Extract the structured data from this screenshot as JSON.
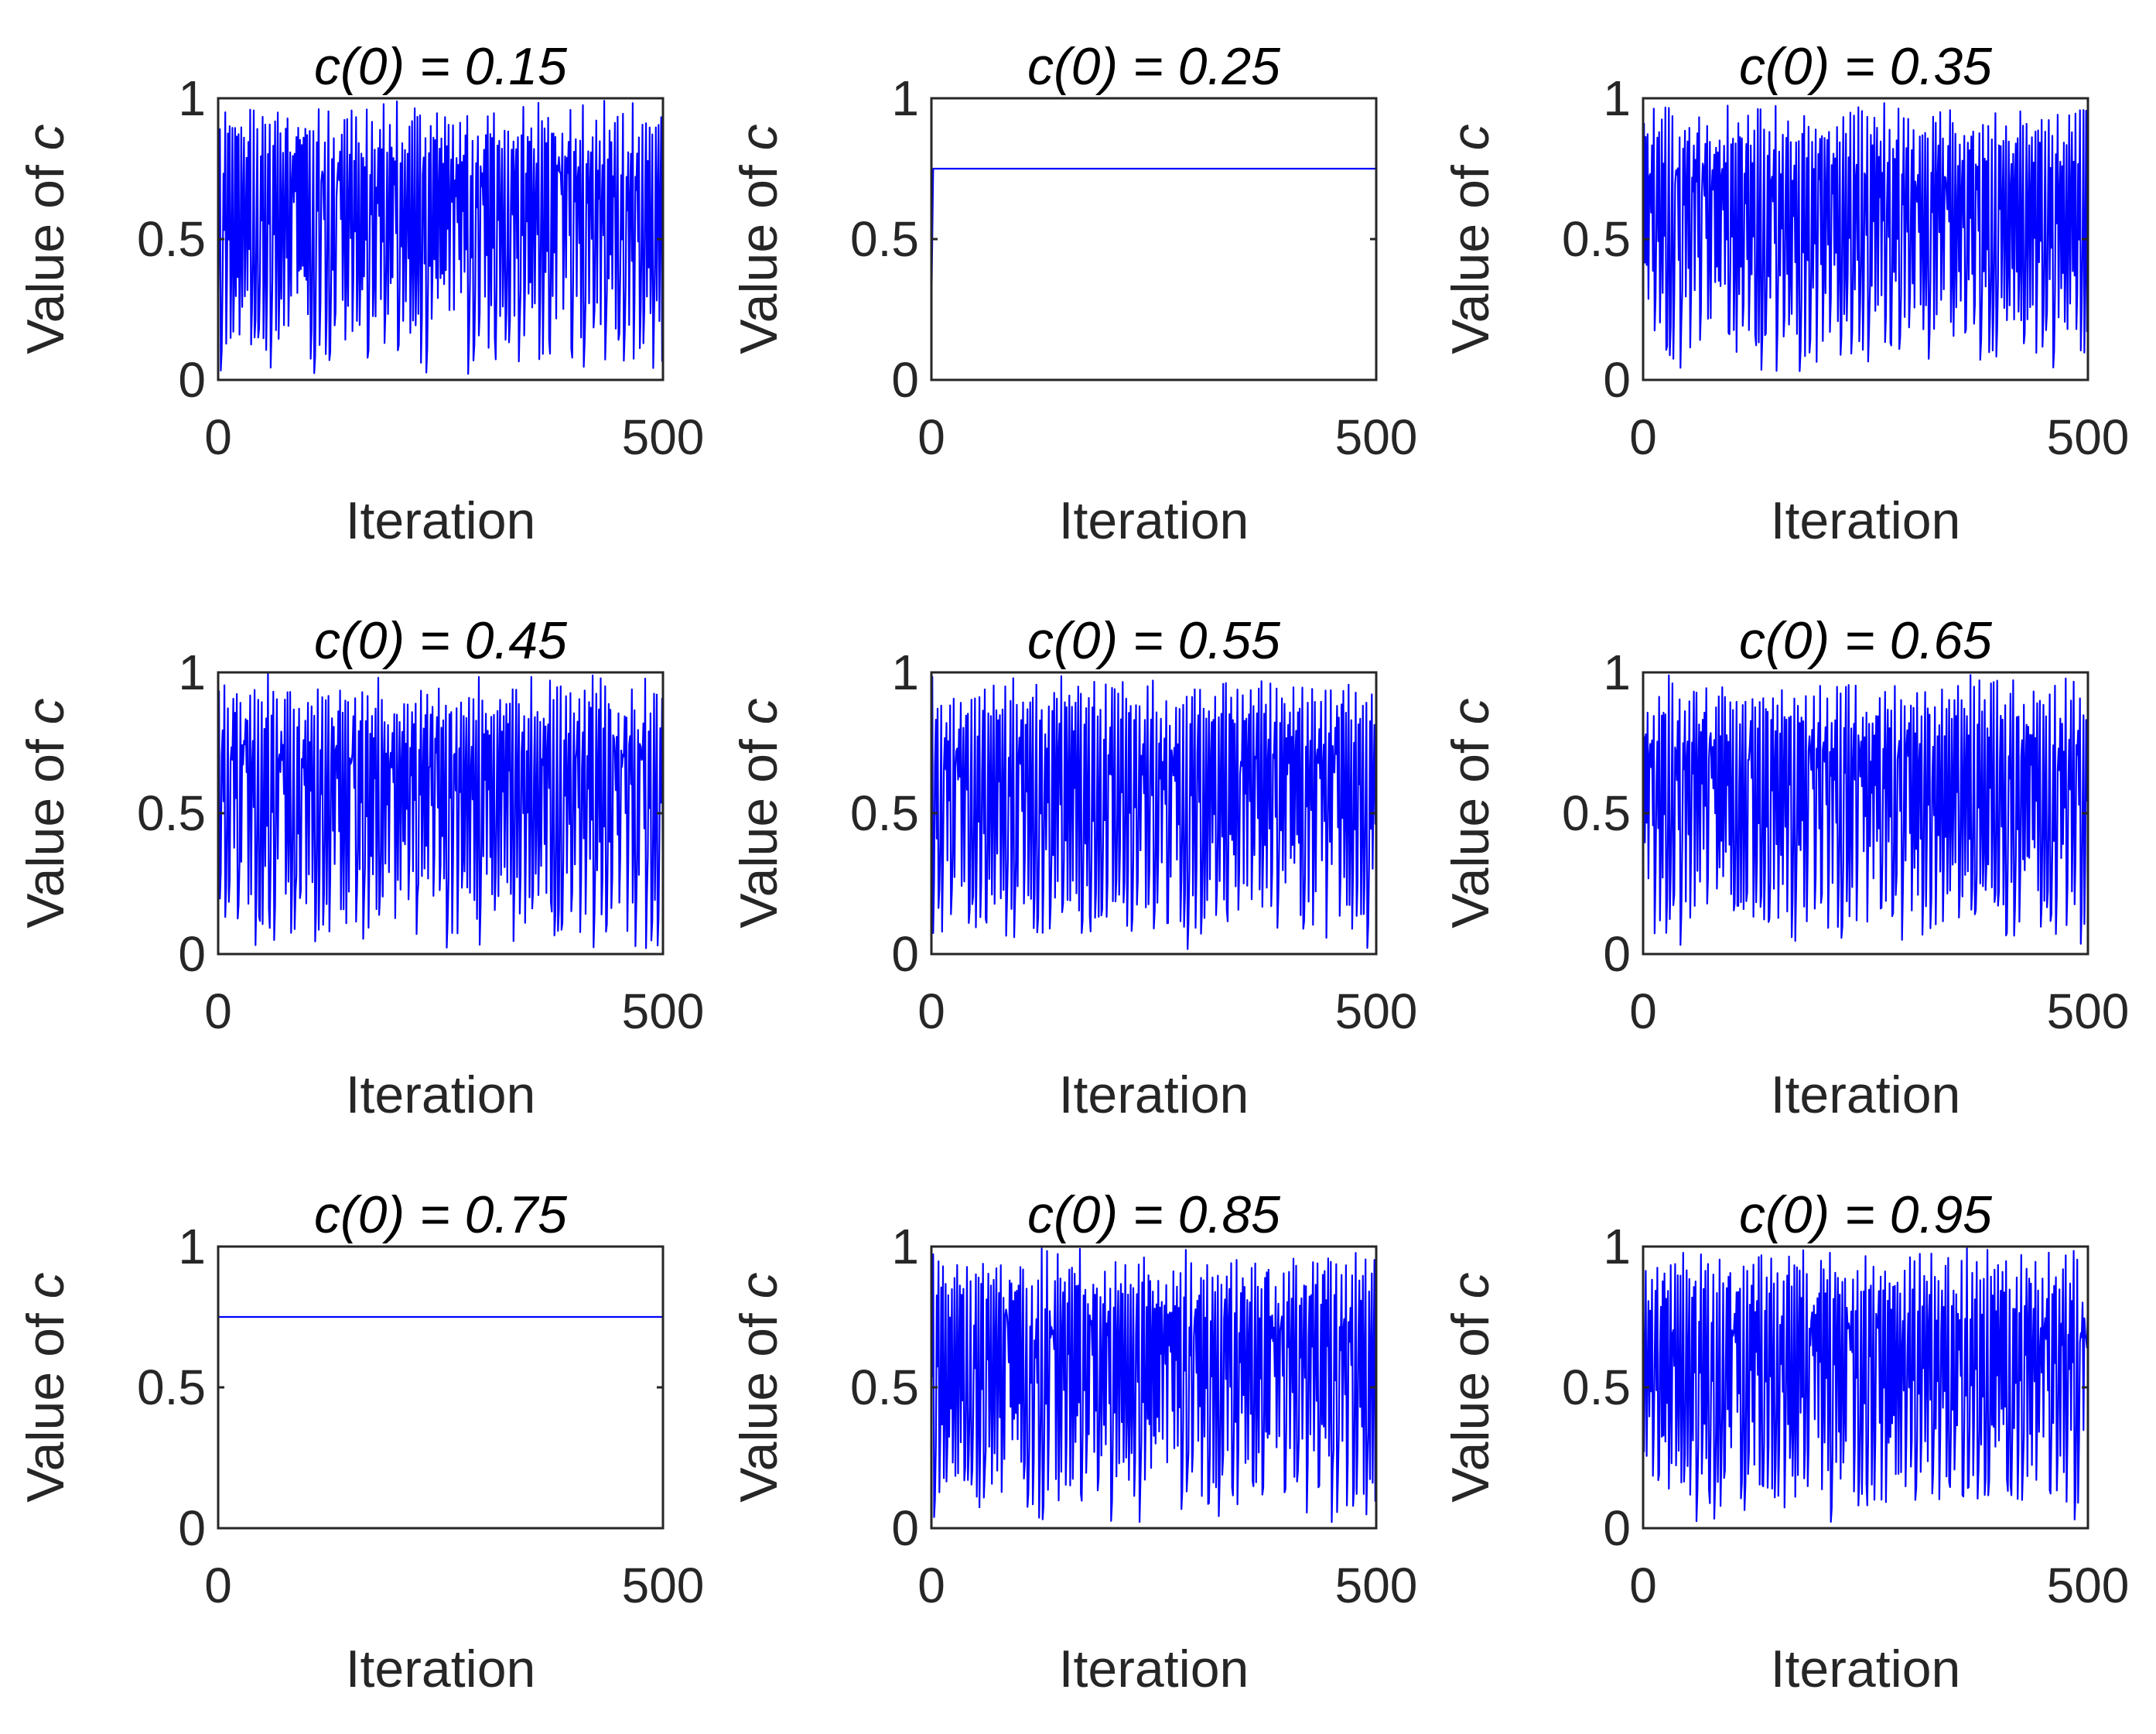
{
  "colors": {
    "series": "#0000ff",
    "axis": "#262626",
    "background": "#ffffff"
  },
  "chart_data": [
    {
      "type": "line",
      "title": "c(0) = 0.15",
      "title_prefix": "c(0) = ",
      "title_value": "0.15",
      "c0": 0.15,
      "behavior": "chaotic",
      "seed": 11,
      "xlabel": "Iteration",
      "ylabel": "Value of c",
      "ylabel_prefix": "Value of ",
      "ylabel_var": "c",
      "xlim": [
        0,
        500
      ],
      "ylim": [
        0,
        1
      ],
      "xticks": [
        "0",
        "500"
      ],
      "yticks": [
        "0",
        "0.5",
        "1"
      ],
      "steady_value": null
    },
    {
      "type": "line",
      "title": "c(0) = 0.25",
      "title_prefix": "c(0) = ",
      "title_value": "0.25",
      "c0": 0.25,
      "behavior": "converges",
      "seed": 0,
      "xlabel": "Iteration",
      "ylabel": "Value of c",
      "ylabel_prefix": "Value of ",
      "ylabel_var": "c",
      "xlim": [
        0,
        500
      ],
      "ylim": [
        0,
        1
      ],
      "xticks": [
        "0",
        "500"
      ],
      "yticks": [
        "0",
        "0.5",
        "1"
      ],
      "steady_value": 0.75
    },
    {
      "type": "line",
      "title": "c(0) = 0.35",
      "title_prefix": "c(0) = ",
      "title_value": "0.35",
      "c0": 0.35,
      "behavior": "chaotic",
      "seed": 23,
      "xlabel": "Iteration",
      "ylabel": "Value of c",
      "ylabel_prefix": "Value of ",
      "ylabel_var": "c",
      "xlim": [
        0,
        500
      ],
      "ylim": [
        0,
        1
      ],
      "xticks": [
        "0",
        "500"
      ],
      "yticks": [
        "0",
        "0.5",
        "1"
      ],
      "steady_value": null
    },
    {
      "type": "line",
      "title": "c(0) = 0.45",
      "title_prefix": "c(0) = ",
      "title_value": "0.45",
      "c0": 0.45,
      "behavior": "chaotic",
      "seed": 37,
      "xlabel": "Iteration",
      "ylabel": "Value of c",
      "ylabel_prefix": "Value of ",
      "ylabel_var": "c",
      "xlim": [
        0,
        500
      ],
      "ylim": [
        0,
        1
      ],
      "xticks": [
        "0",
        "500"
      ],
      "yticks": [
        "0",
        "0.5",
        "1"
      ],
      "steady_value": null
    },
    {
      "type": "line",
      "title": "c(0) = 0.55",
      "title_prefix": "c(0) = ",
      "title_value": "0.55",
      "c0": 0.55,
      "behavior": "chaotic",
      "seed": 41,
      "xlabel": "Iteration",
      "ylabel": "Value of c",
      "ylabel_prefix": "Value of ",
      "ylabel_var": "c",
      "xlim": [
        0,
        500
      ],
      "ylim": [
        0,
        1
      ],
      "xticks": [
        "0",
        "500"
      ],
      "yticks": [
        "0",
        "0.5",
        "1"
      ],
      "steady_value": null
    },
    {
      "type": "line",
      "title": "c(0) = 0.65",
      "title_prefix": "c(0) = ",
      "title_value": "0.65",
      "c0": 0.65,
      "behavior": "chaotic",
      "seed": 53,
      "xlabel": "Iteration",
      "ylabel": "Value of c",
      "ylabel_prefix": "Value of ",
      "ylabel_var": "c",
      "xlim": [
        0,
        500
      ],
      "ylim": [
        0,
        1
      ],
      "xticks": [
        "0",
        "500"
      ],
      "yticks": [
        "0",
        "0.5",
        "1"
      ],
      "steady_value": null
    },
    {
      "type": "line",
      "title": "c(0) = 0.75",
      "title_prefix": "c(0) = ",
      "title_value": "0.75",
      "c0": 0.75,
      "behavior": "constant",
      "seed": 0,
      "xlabel": "Iteration",
      "ylabel": "Value of c",
      "ylabel_prefix": "Value of ",
      "ylabel_var": "c",
      "xlim": [
        0,
        500
      ],
      "ylim": [
        0,
        1
      ],
      "xticks": [
        "0",
        "500"
      ],
      "yticks": [
        "0",
        "0.5",
        "1"
      ],
      "steady_value": 0.75
    },
    {
      "type": "line",
      "title": "c(0) = 0.85",
      "title_prefix": "c(0) = ",
      "title_value": "0.85",
      "c0": 0.85,
      "behavior": "chaotic",
      "seed": 67,
      "xlabel": "Iteration",
      "ylabel": "Value of c",
      "ylabel_prefix": "Value of ",
      "ylabel_var": "c",
      "xlim": [
        0,
        500
      ],
      "ylim": [
        0,
        1
      ],
      "xticks": [
        "0",
        "500"
      ],
      "yticks": [
        "0",
        "0.5",
        "1"
      ],
      "steady_value": null
    },
    {
      "type": "line",
      "title": "c(0) = 0.95",
      "title_prefix": "c(0) = ",
      "title_value": "0.95",
      "c0": 0.95,
      "behavior": "chaotic",
      "seed": 79,
      "xlabel": "Iteration",
      "ylabel": "Value of c",
      "ylabel_prefix": "Value of ",
      "ylabel_var": "c",
      "xlim": [
        0,
        500
      ],
      "ylim": [
        0,
        1
      ],
      "xticks": [
        "0",
        "500"
      ],
      "yticks": [
        "0",
        "0.5",
        "1"
      ],
      "steady_value": null
    }
  ]
}
